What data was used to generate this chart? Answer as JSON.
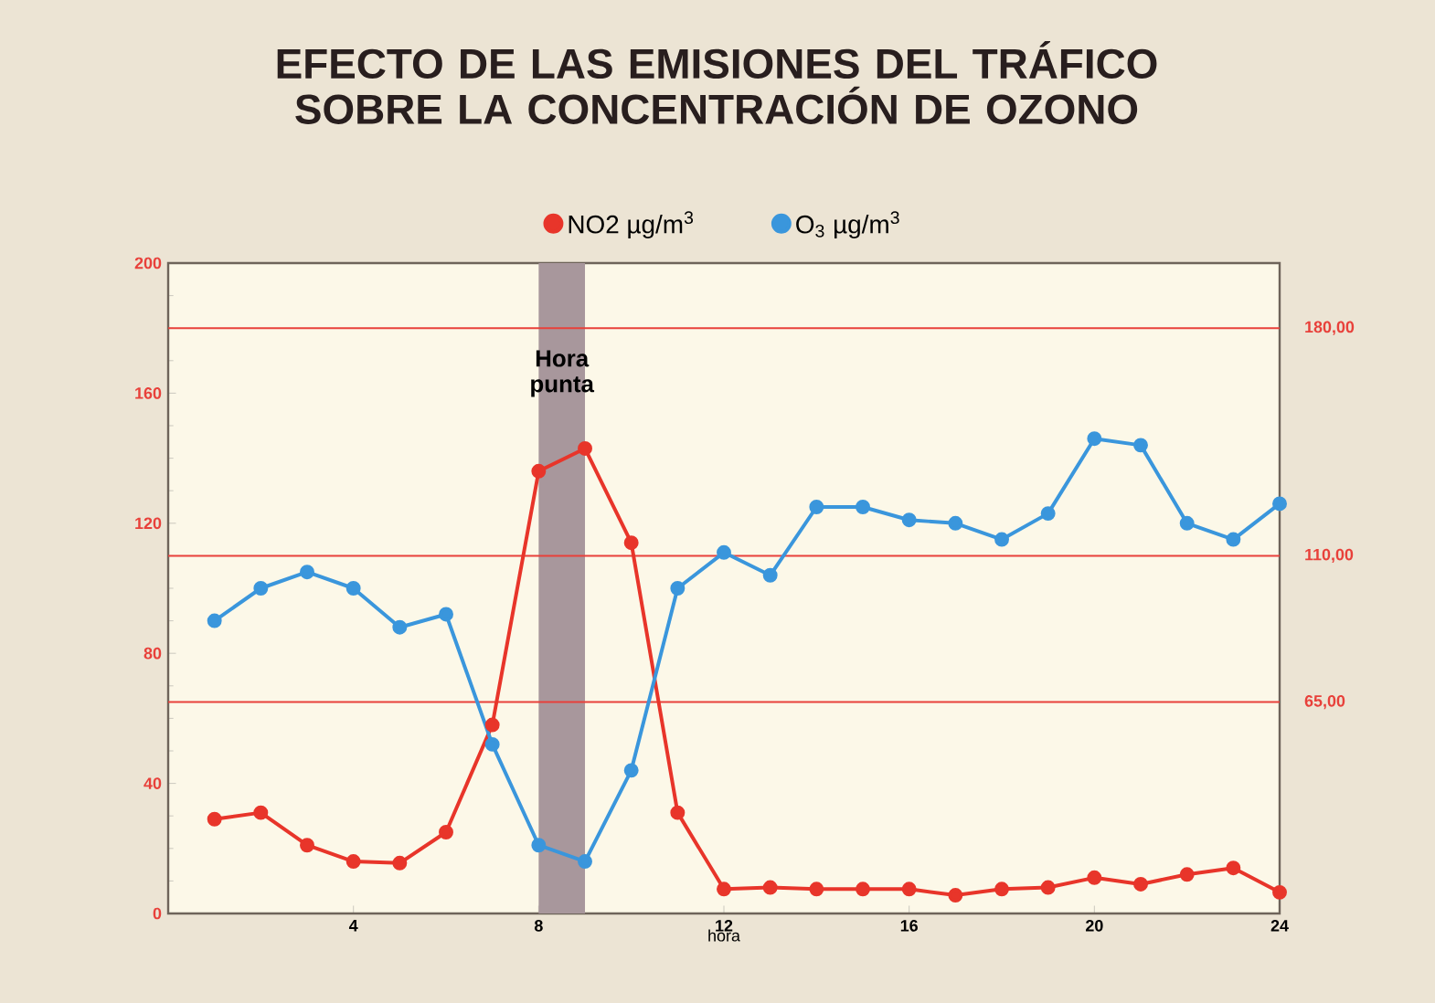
{
  "chart_data": {
    "type": "line",
    "title": "EFECTO DE LAS EMISIONES DEL TRÁFICO SOBRE LA CONCENTRACIÓN DE OZONO",
    "xlabel": "hora",
    "x": [
      1,
      2,
      3,
      4,
      5,
      6,
      7,
      8,
      9,
      10,
      11,
      12,
      13,
      14,
      15,
      16,
      17,
      18,
      19,
      20,
      21,
      22,
      23,
      24
    ],
    "series": [
      {
        "name": "NO2 µg/m$^{3}$",
        "color": "#e8352a",
        "values": [
          29,
          31,
          21,
          16,
          15.5,
          25,
          58,
          136,
          143,
          114,
          31,
          7.5,
          8,
          7.5,
          7.5,
          7.5,
          5.6,
          7.5,
          8,
          11,
          9,
          12,
          14,
          6.5
        ]
      },
      {
        "name": "O$_{3}$  µg/m$^{3}$",
        "color": "#3a96dc",
        "values": [
          90,
          100,
          105,
          100,
          88,
          92,
          52,
          21,
          16,
          44,
          100,
          111,
          104,
          125,
          125,
          121,
          120,
          115,
          123,
          146,
          144,
          120,
          115,
          126
        ]
      }
    ],
    "xlim": [
      0,
      24
    ],
    "xticks": [
      4,
      8,
      12,
      16,
      20,
      24
    ],
    "ylim": [
      0,
      200
    ],
    "yticks": [
      0,
      40,
      80,
      120,
      160,
      200
    ],
    "ref_lines": [
      {
        "axis": "y",
        "value": 180,
        "label": "180,00",
        "color": "#e8403a"
      },
      {
        "axis": "y",
        "value": 110,
        "label": "110,00",
        "color": "#e8403a"
      },
      {
        "axis": "y",
        "value": 65,
        "label": "65,00",
        "color": "#e8403a"
      }
    ],
    "bands": [
      {
        "axis": "x",
        "from": 8,
        "to": 9,
        "label": "Hora punta",
        "color": "#a8979c"
      }
    ],
    "legend": "top",
    "marker": "circle",
    "line_style": "solid",
    "grid": false
  }
}
